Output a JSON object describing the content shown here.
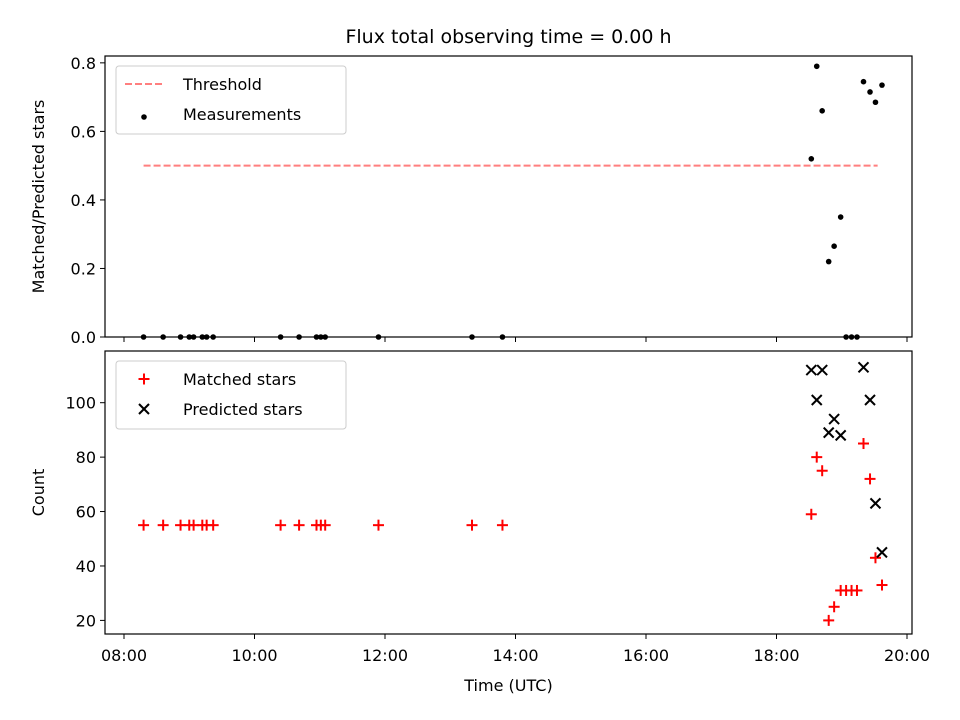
{
  "chart_data": [
    {
      "type": "scatter",
      "title": "Flux total observing time = 0.00 h",
      "ylabel": "Matched/Predicted stars",
      "xlim": [
        "08:00",
        "20:00"
      ],
      "ylim": [
        0,
        0.82
      ],
      "yticks": [
        "0.0",
        "0.2",
        "0.4",
        "0.6",
        "0.8"
      ],
      "legend_position": "upper-left",
      "series": [
        {
          "name": "Threshold",
          "kind": "dashed-line",
          "color": "#ff7f7f",
          "x": [
            "08:18",
            "19:33"
          ],
          "y": [
            0.5,
            0.5
          ]
        },
        {
          "name": "Measurements",
          "kind": "dot",
          "color": "#000000",
          "x": [
            "08:18",
            "08:36",
            "08:52",
            "09:00",
            "09:04",
            "09:12",
            "09:16",
            "09:22",
            "10:24",
            "10:41",
            "10:57",
            "11:01",
            "11:05",
            "11:54",
            "13:20",
            "13:48",
            "18:32",
            "18:37",
            "18:42",
            "18:48",
            "18:53",
            "18:59",
            "19:04",
            "19:09",
            "19:14",
            "19:20",
            "19:26",
            "19:31",
            "19:37"
          ],
          "y": [
            0,
            0,
            0,
            0,
            0,
            0,
            0,
            0,
            0,
            0,
            0,
            0,
            0,
            0,
            0,
            0,
            0.52,
            0.79,
            0.66,
            0.22,
            0.265,
            0.35,
            0,
            0,
            0,
            0.745,
            0.715,
            0.685,
            0.735
          ]
        }
      ]
    },
    {
      "type": "scatter",
      "xlabel": "Time (UTC)",
      "ylabel": "Count",
      "xlim": [
        "08:00",
        "20:00"
      ],
      "ylim": [
        15,
        119
      ],
      "yticks": [
        "20",
        "40",
        "60",
        "80",
        "100"
      ],
      "xticks": [
        "08:00",
        "10:00",
        "12:00",
        "14:00",
        "16:00",
        "18:00",
        "20:00"
      ],
      "legend_position": "upper-left",
      "series": [
        {
          "name": "Matched stars",
          "kind": "plus",
          "color": "#ff0000",
          "x": [
            "08:18",
            "08:36",
            "08:52",
            "09:00",
            "09:04",
            "09:12",
            "09:16",
            "09:22",
            "10:24",
            "10:41",
            "10:57",
            "11:01",
            "11:05",
            "11:54",
            "13:20",
            "13:48",
            "18:32",
            "18:37",
            "18:42",
            "18:48",
            "18:53",
            "18:59",
            "19:04",
            "19:09",
            "19:14",
            "19:20",
            "19:26",
            "19:31",
            "19:37"
          ],
          "y": [
            55,
            55,
            55,
            55,
            55,
            55,
            55,
            55,
            55,
            55,
            55,
            55,
            55,
            55,
            55,
            55,
            59,
            80,
            75,
            20,
            25,
            31,
            31,
            31,
            31,
            85,
            72,
            43,
            33
          ]
        },
        {
          "name": "Predicted stars",
          "kind": "x",
          "color": "#000000",
          "x": [
            "18:32",
            "18:37",
            "18:42",
            "18:48",
            "18:53",
            "18:59",
            "19:20",
            "19:26",
            "19:31",
            "19:37"
          ],
          "y": [
            112,
            101,
            112,
            89,
            94,
            88,
            113,
            101,
            63,
            45
          ]
        }
      ]
    }
  ]
}
